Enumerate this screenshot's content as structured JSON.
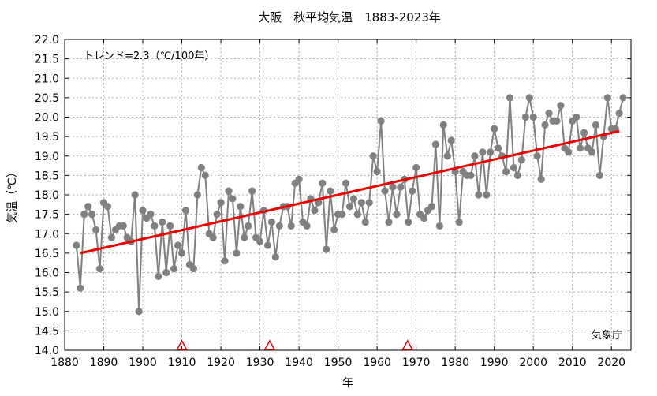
{
  "chart_data": {
    "type": "line",
    "title": "大阪　秋平均気温　1883-2023年",
    "xlabel": "年",
    "ylabel": "気温（℃）",
    "annotation": "トレンド=2.3（℃/100年）",
    "source_label": "気象庁",
    "xlim": [
      1880,
      2025
    ],
    "ylim": [
      14.0,
      22.0
    ],
    "x_ticks": [
      1880,
      1890,
      1900,
      1910,
      1920,
      1930,
      1940,
      1950,
      1960,
      1970,
      1980,
      1990,
      2000,
      2010,
      2020
    ],
    "y_ticks": [
      14.0,
      14.5,
      15.0,
      15.5,
      16.0,
      16.5,
      17.0,
      17.5,
      18.0,
      18.5,
      19.0,
      19.5,
      20.0,
      20.5,
      21.0,
      21.5,
      22.0
    ],
    "grid": true,
    "series": [
      {
        "color": "#808080",
        "x": [
          1883,
          1884,
          1885,
          1886,
          1887,
          1888,
          1889,
          1890,
          1891,
          1892,
          1893,
          1894,
          1895,
          1896,
          1897,
          1898,
          1899,
          1900,
          1901,
          1902,
          1903,
          1904,
          1905,
          1906,
          1907,
          1908,
          1909,
          1910,
          1911,
          1912,
          1913,
          1914,
          1915,
          1916,
          1917,
          1918,
          1919,
          1920,
          1921,
          1922,
          1923,
          1924,
          1925,
          1926,
          1927,
          1928,
          1929,
          1930,
          1931,
          1932,
          1933,
          1934,
          1935,
          1936,
          1937,
          1938,
          1939,
          1940,
          1941,
          1942,
          1943,
          1944,
          1945,
          1946,
          1947,
          1948,
          1949,
          1950,
          1951,
          1952,
          1953,
          1954,
          1955,
          1956,
          1957,
          1958,
          1959,
          1960,
          1961,
          1962,
          1963,
          1964,
          1965,
          1966,
          1967,
          1968,
          1969,
          1970,
          1971,
          1972,
          1973,
          1974,
          1975,
          1976,
          1977,
          1978,
          1979,
          1980,
          1981,
          1982,
          1983,
          1984,
          1985,
          1986,
          1987,
          1988,
          1989,
          1990,
          1991,
          1992,
          1993,
          1994,
          1995,
          1996,
          1997,
          1998,
          1999,
          2000,
          2001,
          2002,
          2003,
          2004,
          2005,
          2006,
          2007,
          2008,
          2009,
          2010,
          2011,
          2012,
          2013,
          2014,
          2015,
          2016,
          2017,
          2018,
          2019,
          2020,
          2021,
          2022,
          2023
        ],
        "y": [
          16.7,
          15.6,
          17.5,
          17.7,
          17.5,
          17.1,
          16.1,
          17.8,
          17.7,
          16.9,
          17.1,
          17.2,
          17.2,
          16.9,
          16.8,
          18.0,
          15.0,
          17.6,
          17.4,
          17.5,
          17.2,
          15.9,
          17.3,
          16.0,
          17.2,
          16.1,
          16.7,
          16.5,
          17.6,
          16.2,
          16.1,
          18.0,
          18.7,
          18.5,
          17.0,
          16.9,
          17.5,
          17.8,
          16.3,
          18.1,
          17.9,
          16.5,
          17.7,
          16.9,
          17.2,
          18.1,
          16.9,
          16.8,
          17.6,
          16.7,
          17.3,
          16.4,
          17.2,
          17.7,
          17.7,
          17.2,
          18.3,
          18.4,
          17.3,
          17.2,
          17.9,
          17.6,
          17.8,
          18.3,
          16.6,
          18.1,
          17.1,
          17.5,
          17.5,
          18.3,
          17.7,
          17.9,
          17.5,
          17.8,
          17.3,
          17.8,
          19.0,
          18.6,
          19.9,
          18.1,
          17.3,
          18.2,
          17.5,
          18.2,
          18.4,
          17.3,
          18.1,
          18.7,
          17.5,
          17.4,
          17.6,
          17.7,
          19.3,
          17.2,
          19.8,
          19.0,
          19.4,
          18.6,
          17.3,
          18.6,
          18.5,
          18.5,
          19.0,
          18.0,
          19.1,
          18.0,
          19.1,
          19.7,
          19.2,
          19.0,
          18.6,
          20.5,
          18.7,
          18.5,
          18.9,
          20.0,
          20.5,
          20.0,
          19.0,
          18.4,
          19.8,
          20.1,
          19.9,
          19.9,
          20.3,
          19.2,
          19.1,
          19.9,
          20.0,
          19.2,
          19.6,
          19.2,
          19.1,
          19.8,
          18.5,
          19.5,
          20.5,
          19.7,
          19.7,
          20.1,
          20.5
        ]
      }
    ],
    "trend": {
      "color": "#ee0000",
      "x": [
        1884,
        2022
      ],
      "y": [
        16.5,
        19.64
      ]
    },
    "station_relocations": {
      "color": "#ee0000",
      "x": [
        1910,
        1932.5,
        1967.8
      ]
    }
  }
}
